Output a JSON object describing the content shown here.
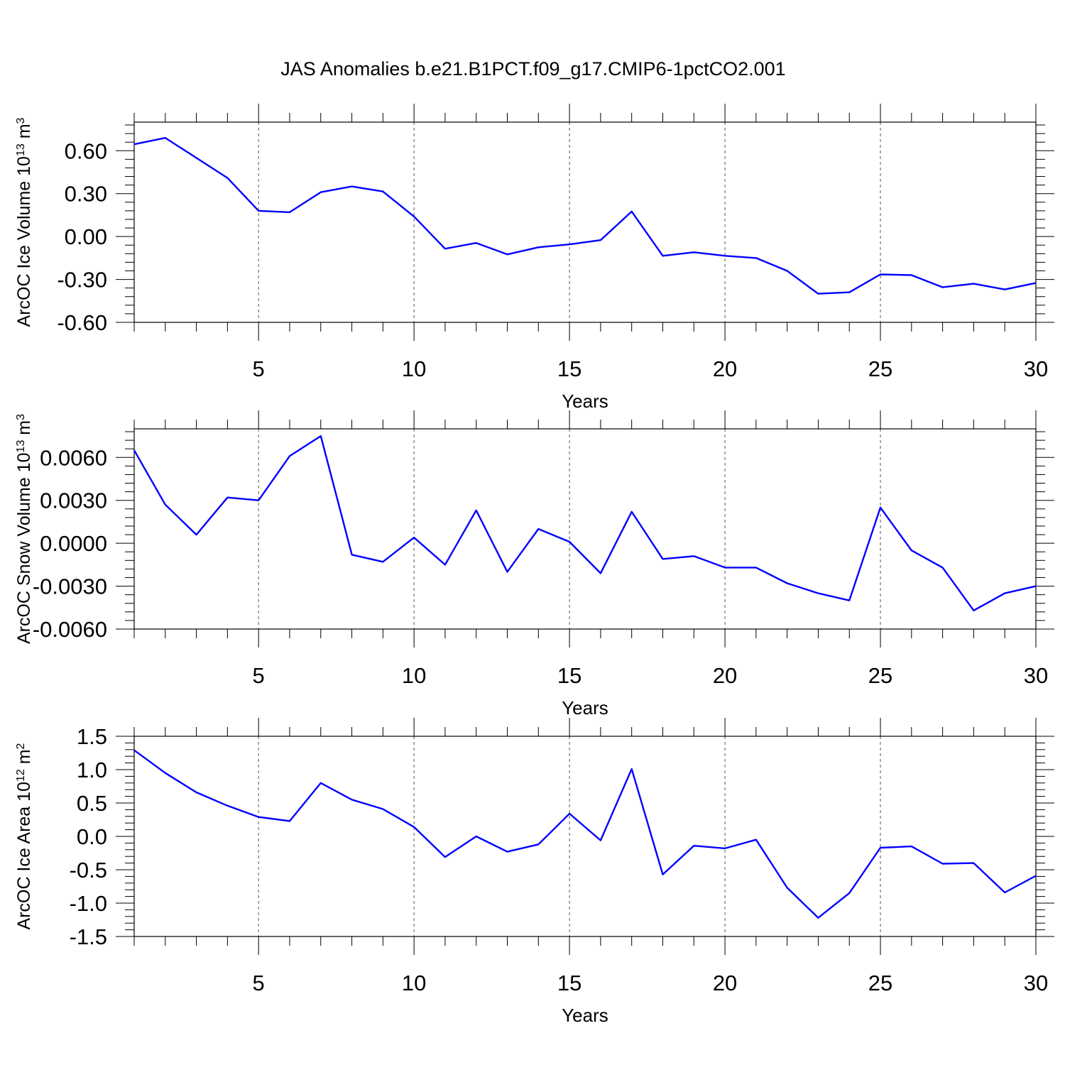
{
  "title": "JAS Anomalies b.e21.B1PCT.f09_g17.CMIP6-1pctCO2.001",
  "colors": {
    "line": "#0000ff",
    "axis": "#000000"
  },
  "chart_data": [
    {
      "type": "line",
      "ylabel": {
        "text": "ArcOC Ice Volume 10",
        "sup1": "13",
        "mid": " m",
        "sup2": "3"
      },
      "xlabel": "Years",
      "xlim": [
        1,
        30
      ],
      "ylim": [
        -0.6,
        0.8
      ],
      "xticks": [
        5,
        10,
        15,
        20,
        25,
        30
      ],
      "xtick_labels": [
        "5",
        "10",
        "15",
        "20",
        "25",
        "30"
      ],
      "yticks": [
        -0.6,
        -0.3,
        0.0,
        0.3,
        0.6
      ],
      "ytick_labels": [
        "-0.60",
        "-0.30",
        "0.00",
        "0.30",
        "0.60"
      ],
      "grid": "dashed vertical at major x ticks",
      "x": [
        1,
        2,
        3,
        4,
        5,
        6,
        7,
        8,
        9,
        10,
        11,
        12,
        13,
        14,
        15,
        16,
        17,
        18,
        19,
        20,
        21,
        22,
        23,
        24,
        25,
        26,
        27,
        28,
        29,
        30
      ],
      "values": [
        0.645,
        0.69,
        0.55,
        0.41,
        0.18,
        0.17,
        0.31,
        0.35,
        0.315,
        0.14,
        -0.085,
        -0.045,
        -0.125,
        -0.075,
        -0.055,
        -0.025,
        0.175,
        -0.135,
        -0.11,
        -0.135,
        -0.15,
        -0.24,
        -0.4,
        -0.39,
        -0.265,
        -0.27,
        -0.355,
        -0.33,
        -0.37,
        -0.325
      ]
    },
    {
      "type": "line",
      "ylabel": {
        "text": "ArcOC Snow Volume 10",
        "sup1": "13",
        "mid": " m",
        "sup2": "3"
      },
      "xlabel": "Years",
      "xlim": [
        1,
        30
      ],
      "ylim": [
        -0.006,
        0.008
      ],
      "xticks": [
        5,
        10,
        15,
        20,
        25,
        30
      ],
      "xtick_labels": [
        "5",
        "10",
        "15",
        "20",
        "25",
        "30"
      ],
      "yticks": [
        -0.006,
        -0.003,
        0.0,
        0.003,
        0.006
      ],
      "ytick_labels": [
        "-0.0060",
        "-0.0030",
        "0.0000",
        "0.0030",
        "0.0060"
      ],
      "grid": "dashed vertical at major x ticks",
      "x": [
        1,
        2,
        3,
        4,
        5,
        6,
        7,
        8,
        9,
        10,
        11,
        12,
        13,
        14,
        15,
        16,
        17,
        18,
        19,
        20,
        21,
        22,
        23,
        24,
        25,
        26,
        27,
        28,
        29,
        30
      ],
      "values": [
        0.0065,
        0.0027,
        0.0006,
        0.0032,
        0.003,
        0.0061,
        0.0075,
        -0.0008,
        -0.0013,
        0.0004,
        -0.0015,
        0.0023,
        -0.002,
        0.001,
        0.0001,
        -0.0021,
        0.0022,
        -0.0011,
        -0.0009,
        -0.0017,
        -0.0017,
        -0.0028,
        -0.0035,
        -0.004,
        0.0025,
        -0.0005,
        -0.0017,
        -0.0047,
        -0.0035,
        -0.003
      ]
    },
    {
      "type": "line",
      "ylabel": {
        "text": "ArcOC Ice Area 10",
        "sup1": "12",
        "mid": " m",
        "sup2": "2"
      },
      "xlabel": "Years",
      "xlim": [
        1,
        30
      ],
      "ylim": [
        -1.5,
        1.5
      ],
      "xticks": [
        5,
        10,
        15,
        20,
        25,
        30
      ],
      "xtick_labels": [
        "5",
        "10",
        "15",
        "20",
        "25",
        "30"
      ],
      "yticks": [
        -1.5,
        -1.0,
        -0.5,
        0.0,
        0.5,
        1.0,
        1.5
      ],
      "ytick_labels": [
        "-1.5",
        "-1.0",
        "-0.5",
        "0.0",
        "0.5",
        "1.0",
        "1.5"
      ],
      "grid": "dashed vertical at major x ticks",
      "x": [
        1,
        2,
        3,
        4,
        5,
        6,
        7,
        8,
        9,
        10,
        11,
        12,
        13,
        14,
        15,
        16,
        17,
        18,
        19,
        20,
        21,
        22,
        23,
        24,
        25,
        26,
        27,
        28,
        29,
        30
      ],
      "values": [
        1.29,
        0.95,
        0.66,
        0.46,
        0.29,
        0.23,
        0.8,
        0.55,
        0.41,
        0.14,
        -0.31,
        0.0,
        -0.23,
        -0.12,
        0.34,
        -0.06,
        1.01,
        -0.57,
        -0.14,
        -0.18,
        -0.05,
        -0.77,
        -1.22,
        -0.85,
        -0.17,
        -0.15,
        -0.41,
        -0.4,
        -0.84,
        -0.59
      ]
    }
  ]
}
